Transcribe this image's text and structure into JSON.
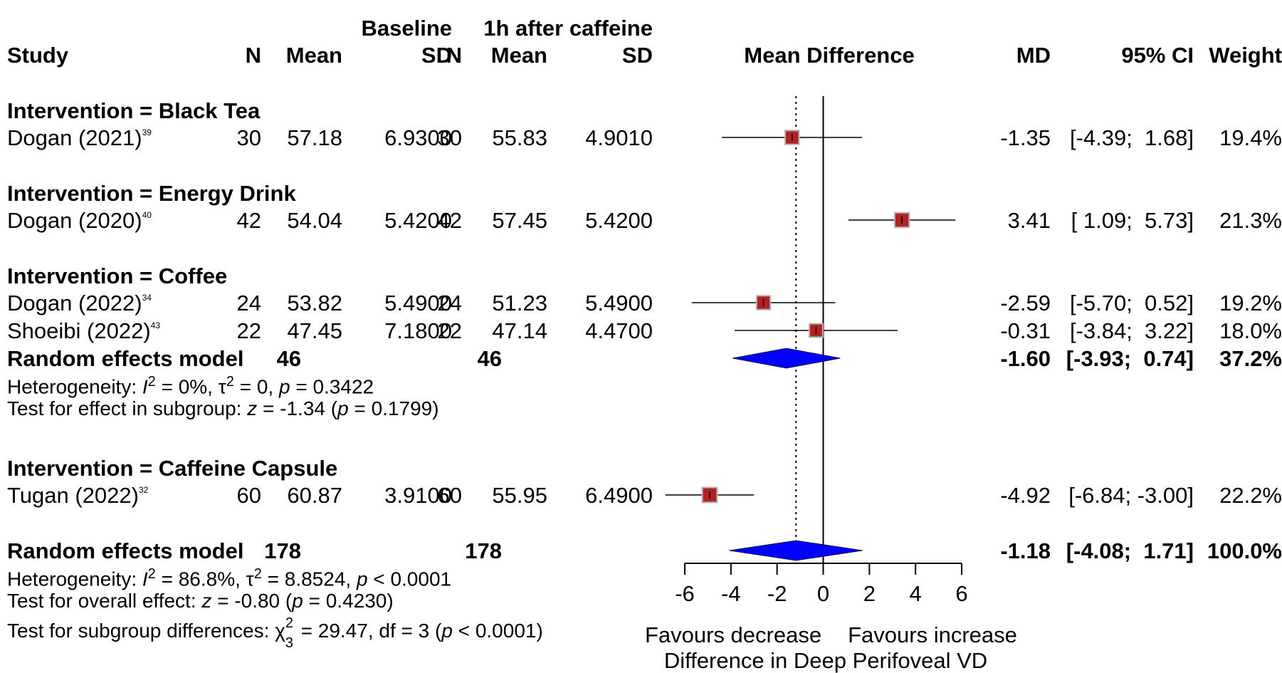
{
  "header": {
    "baseline": "Baseline",
    "after": "1h after caffeine",
    "study": "Study",
    "n1": "N",
    "mean1": "Mean",
    "sd1": "SD",
    "n2": "N",
    "mean2": "Mean",
    "sd2": "SD",
    "mean_difference": "Mean Difference",
    "md": "MD",
    "ci": "95% CI",
    "weight": "Weight"
  },
  "colors": {
    "square_fill": "#B22222",
    "square_border": "#B5B5B5",
    "diamond_fill": "#0000FF",
    "line": "#000000"
  },
  "chart_data": {
    "type": "forest",
    "xlim": [
      -6,
      6
    ],
    "xticks": [
      "-6",
      "-4",
      "-2",
      "0",
      "2",
      "4",
      "6"
    ],
    "xlabel": "Difference in Deep Perifoveal VD",
    "favours_left": "Favours decrease",
    "favours_right": "Favours increase",
    "pooled_reference": -1.18,
    "rows": [
      {
        "kind": "group",
        "label": "Intervention = Black Tea"
      },
      {
        "kind": "study",
        "name": "Dogan (2021)",
        "ref": "39",
        "n1": "30",
        "mean1": "57.18",
        "sd1": "6.9300",
        "n2": "30",
        "mean2": "55.83",
        "sd2": "4.9010",
        "md_text": "-1.35",
        "ci_text": "[-4.39;  1.68]",
        "weight_text": "19.4%",
        "md": -1.35,
        "lo": -4.39,
        "hi": 1.68,
        "weight": 19.4
      },
      {
        "kind": "group",
        "label": "Intervention = Energy Drink"
      },
      {
        "kind": "study",
        "name": "Dogan (2020)",
        "ref": "40",
        "n1": "42",
        "mean1": "54.04",
        "sd1": "5.4200",
        "n2": "42",
        "mean2": "57.45",
        "sd2": "5.4200",
        "md_text": "3.41",
        "ci_text": "[ 1.09;  5.73]",
        "weight_text": "21.3%",
        "md": 3.41,
        "lo": 1.09,
        "hi": 5.73,
        "weight": 21.3
      },
      {
        "kind": "group",
        "label": "Intervention = Coffee"
      },
      {
        "kind": "study",
        "name": "Dogan (2022)",
        "ref": "34",
        "n1": "24",
        "mean1": "53.82",
        "sd1": "5.4900",
        "n2": "24",
        "mean2": "51.23",
        "sd2": "5.4900",
        "md_text": "-2.59",
        "ci_text": "[-5.70;  0.52]",
        "weight_text": "19.2%",
        "md": -2.59,
        "lo": -5.7,
        "hi": 0.52,
        "weight": 19.2
      },
      {
        "kind": "study",
        "name": "Shoeibi (2022)",
        "ref": "43",
        "n1": "22",
        "mean1": "47.45",
        "sd1": "7.1800",
        "n2": "22",
        "mean2": "47.14",
        "sd2": "4.4700",
        "md_text": "-0.31",
        "ci_text": "[-3.84;  3.22]",
        "weight_text": "18.0%",
        "md": -0.31,
        "lo": -3.84,
        "hi": 3.22,
        "weight": 18.0
      },
      {
        "kind": "pooled",
        "label": "Random effects model",
        "n1": "46",
        "n2": "46",
        "md_text": "-1.60",
        "ci_text": "[-3.93;  0.74]",
        "weight_text": "37.2%",
        "md": -1.6,
        "lo": -3.93,
        "hi": 0.74
      },
      {
        "kind": "group",
        "label": "Intervention = Caffeine Capsule"
      },
      {
        "kind": "study",
        "name": "Tugan (2022)",
        "ref": "32",
        "n1": "60",
        "mean1": "60.87",
        "sd1": "3.9100",
        "n2": "60",
        "mean2": "55.95",
        "sd2": "6.4900",
        "md_text": "-4.92",
        "ci_text": "[-6.84; -3.00]",
        "weight_text": "22.2%",
        "md": -4.92,
        "lo": -6.84,
        "hi": -3.0,
        "weight": 22.2
      },
      {
        "kind": "overall",
        "label": "Random effects model",
        "n1": "178",
        "n2": "178",
        "md_text": "-1.18",
        "ci_text": "[-4.08;  1.71]",
        "weight_text": "100.0%",
        "md": -1.18,
        "lo": -4.08,
        "hi": 1.71
      }
    ],
    "coffee_stats": {
      "het_prefix": "Heterogeneity: ",
      "het_I": "I",
      "het_I_sup": "2",
      "het_after_I": " = 0%, τ",
      "het_tau_sup": "2",
      "het_after_tau": " = 0, ",
      "het_p": "p",
      "het_p_val": " = 0.3422",
      "test_prefix": "Test for effect in subgroup: ",
      "test_z": "z",
      "test_z_val": " = -1.34 (",
      "test_p": "p",
      "test_p_val": " = 0.1799)"
    },
    "overall_stats": {
      "het_prefix": "Heterogeneity: ",
      "het_I": "I",
      "het_I_sup": "2",
      "het_after_I": " = 86.8%, τ",
      "het_tau_sup": "2",
      "het_after_tau": " = 8.8524, ",
      "het_p": "p",
      "het_p_val": " < 0.0001",
      "test_prefix": "Test for overall effect: ",
      "test_z": "z",
      "test_z_val": " = -0.80 (",
      "test_p": "p",
      "test_p_val": " = 0.4230)",
      "sub_prefix": "Test for subgroup differences: χ",
      "sub_chi_sup": "2",
      "sub_chi_sub": "3",
      "sub_val": " = 29.47, df = 3 (",
      "sub_p": "p",
      "sub_p_val": " < 0.0001)"
    }
  }
}
